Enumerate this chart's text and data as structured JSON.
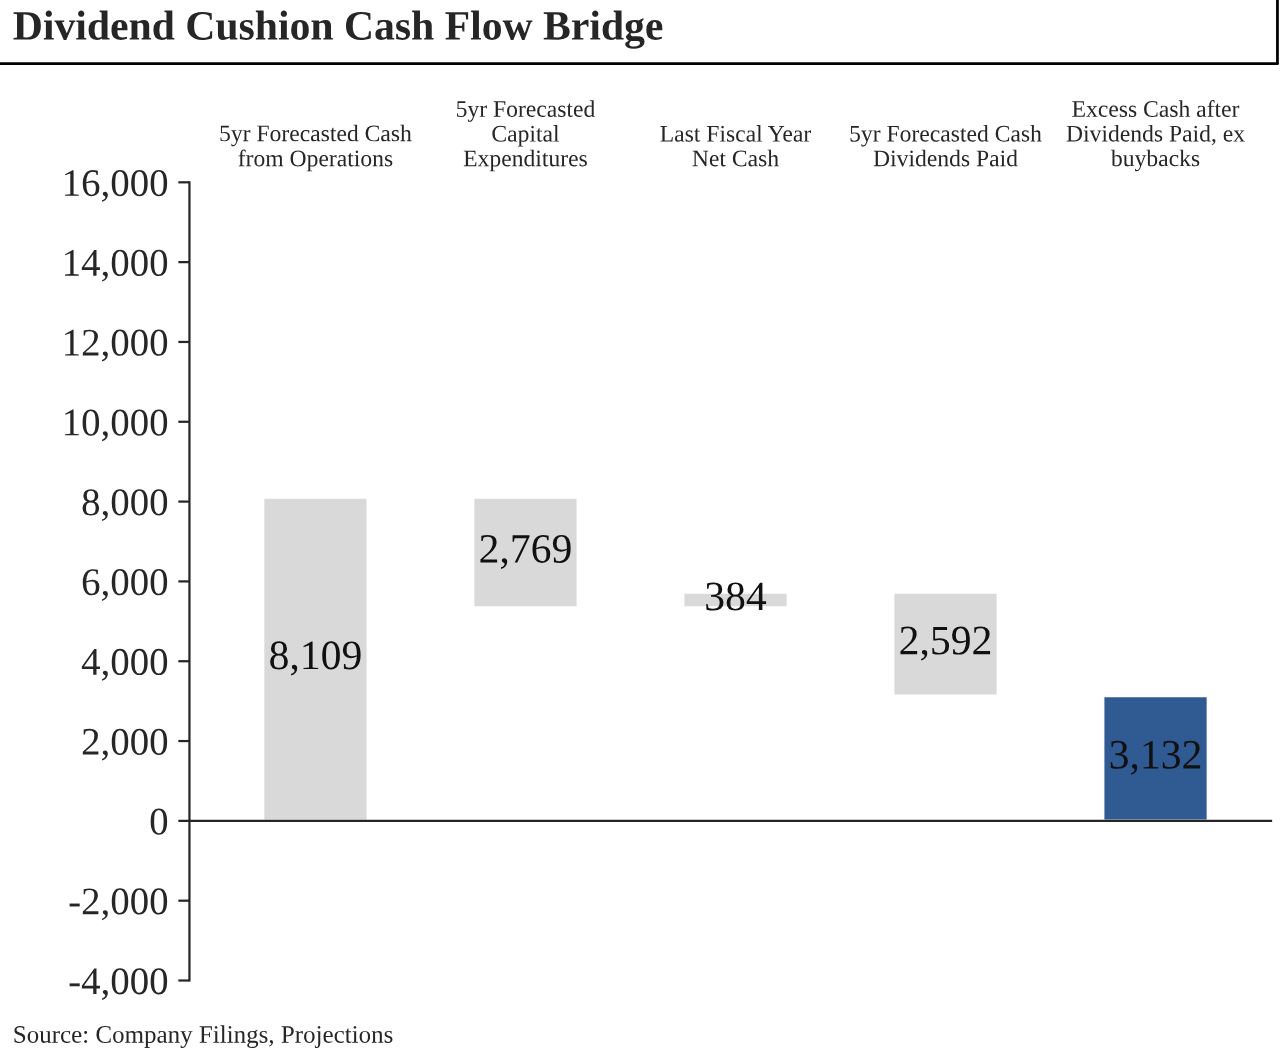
{
  "chart_data": {
    "type": "bar",
    "title": "Dividend Cushion Cash Flow Bridge",
    "categories": [
      "5yr Forecasted Cash\nfrom Operations",
      "5yr Forecasted\nCapital\nExpenditures",
      "Last Fiscal Year\nNet Cash",
      "5yr Forecasted Cash\nDividends Paid",
      "Excess Cash after\nDividends Paid, ex\nbuybacks"
    ],
    "values": [
      8109,
      2769,
      384,
      2592,
      3132
    ],
    "base": [
      0,
      5340,
      5340,
      3132,
      0
    ],
    "colors": [
      "#d9d9d9",
      "#d9d9d9",
      "#d9d9d9",
      "#d9d9d9",
      "#2f5a92"
    ],
    "value_labels": [
      "8,109",
      "2,769",
      "384",
      "2,592",
      "3,132"
    ],
    "ylim": [
      -4000,
      16000
    ],
    "yticks": [
      {
        "value": -4000,
        "label": "-4,000"
      },
      {
        "value": -2000,
        "label": "-2,000"
      },
      0,
      {
        "value": 2000,
        "label": "2,000"
      },
      {
        "value": 4000,
        "label": "4,000"
      },
      {
        "value": 6000,
        "label": "6,000"
      },
      {
        "value": 8000,
        "label": "8,000"
      },
      {
        "value": 10000,
        "label": "10,000"
      },
      {
        "value": 12000,
        "label": "12,000"
      },
      {
        "value": 14000,
        "label": "14,000"
      },
      {
        "value": 16000,
        "label": "16,000"
      }
    ],
    "annotations": [
      "Source: Company Filings, Projections"
    ]
  }
}
